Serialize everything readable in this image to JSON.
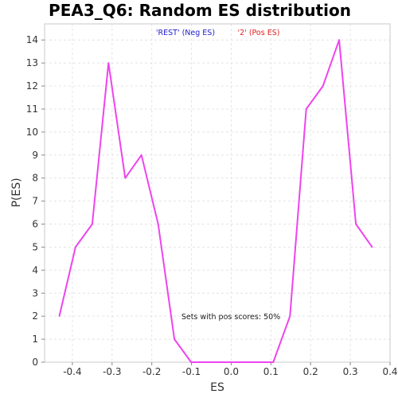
{
  "chart_data": {
    "type": "line",
    "title": "PEA3_Q6: Random ES distribution",
    "xlabel": "ES",
    "ylabel": "P(ES)",
    "xlim": [
      -0.47,
      0.4
    ],
    "ylim": [
      0,
      14.7
    ],
    "x_ticks": [
      -0.4,
      -0.3,
      -0.2,
      -0.1,
      0.0,
      0.1,
      0.2,
      0.3,
      0.4
    ],
    "x_tick_labels": [
      "-0.4",
      "-0.3",
      "-0.2",
      "-0.1",
      "0.0",
      "0.1",
      "0.2",
      "0.3",
      "0.4"
    ],
    "y_ticks": [
      0,
      1,
      2,
      3,
      4,
      5,
      6,
      7,
      8,
      9,
      10,
      11,
      12,
      13,
      14
    ],
    "y_tick_labels": [
      "0",
      "1",
      "2",
      "3",
      "4",
      "5",
      "6",
      "7",
      "8",
      "9",
      "10",
      "11",
      "12",
      "13",
      "14"
    ],
    "grid": true,
    "legend": [
      {
        "label": "'REST' (Neg ES)",
        "color": "#2222cc"
      },
      {
        "label": "'2' (Pos ES)",
        "color": "#dd2222"
      }
    ],
    "annotation": "Sets with pos scores: 50%",
    "series": [
      {
        "color": "#ee44ee",
        "x": [
          -0.433,
          -0.392,
          -0.35,
          -0.309,
          -0.267,
          -0.226,
          -0.184,
          -0.143,
          -0.101,
          -0.06,
          -0.018,
          0.023,
          0.065,
          0.106,
          0.148,
          0.189,
          0.231,
          0.272,
          0.314,
          0.355
        ],
        "y": [
          2,
          5,
          6,
          13,
          8,
          9,
          6,
          1,
          0,
          0,
          0,
          0,
          0,
          0,
          2,
          11,
          12,
          14,
          6,
          5
        ]
      }
    ]
  }
}
